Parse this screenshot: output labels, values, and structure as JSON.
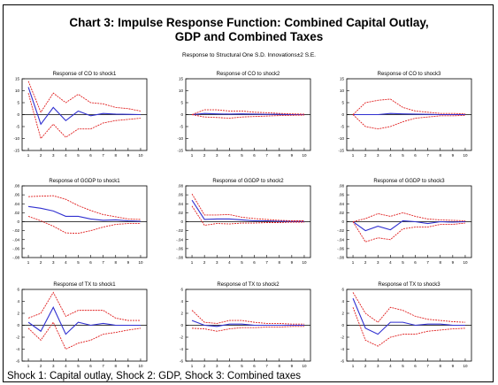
{
  "title_line1": "Chart 3: Impulse Response Function: Combined Capital Outlay,",
  "title_line2": "GDP and Combined Taxes",
  "subtitle": "Response to Structural One S.D. Innovations±2 S.E.",
  "footnote": "Shock 1: Capital outlay, Shock 2: GDP, Shock 3: Combined taxes",
  "colors": {
    "response": "#3030d0",
    "bands": "#e02020",
    "zero": "#000000",
    "frame": "#000000"
  },
  "chart_data": [
    {
      "type": "line",
      "title": "Response of CO to shock1",
      "x": [
        1,
        2,
        3,
        4,
        5,
        6,
        7,
        8,
        9,
        10
      ],
      "ylim": [
        -15,
        15
      ],
      "yticks": [
        "15",
        "10",
        "5",
        "0",
        "-5",
        "-10",
        "-15"
      ],
      "series": [
        {
          "values": [
            11.5,
            -4,
            3,
            -2.5,
            1.5,
            -0.5,
            0.5,
            0.2,
            0.1,
            0
          ]
        },
        {
          "values": [
            14,
            1,
            9,
            5,
            8.5,
            5,
            4.5,
            3,
            2.5,
            1.5
          ]
        },
        {
          "values": [
            9,
            -10,
            -4,
            -9.5,
            -6,
            -6,
            -3.5,
            -2.5,
            -2,
            -1.5
          ]
        }
      ]
    },
    {
      "type": "line",
      "title": "Response of CO to shock2",
      "x": [
        1,
        2,
        3,
        4,
        5,
        6,
        7,
        8,
        9,
        10
      ],
      "ylim": [
        -15,
        15
      ],
      "yticks": [
        "15",
        "10",
        "5",
        "0",
        "-5",
        "-10",
        "-15"
      ],
      "series": [
        {
          "values": [
            0,
            0.5,
            0.3,
            0.2,
            0.3,
            0.2,
            0.1,
            0.1,
            0,
            0
          ]
        },
        {
          "values": [
            0,
            2,
            2,
            1.5,
            1.5,
            1,
            0.8,
            0.5,
            0.3,
            0.2
          ]
        },
        {
          "values": [
            0,
            -1,
            -1.2,
            -1.5,
            -1,
            -0.8,
            -0.6,
            -0.4,
            -0.3,
            -0.2
          ]
        }
      ]
    },
    {
      "type": "line",
      "title": "Response of CO to shock3",
      "x": [
        1,
        2,
        3,
        4,
        5,
        6,
        7,
        8,
        9,
        10
      ],
      "ylim": [
        -15,
        15
      ],
      "yticks": [
        "15",
        "10",
        "5",
        "0",
        "-5",
        "-10",
        "-15"
      ],
      "series": [
        {
          "values": [
            0,
            0,
            0,
            0.5,
            0.3,
            0.2,
            0.1,
            0,
            0,
            0
          ]
        },
        {
          "values": [
            0,
            5,
            6,
            6.5,
            3,
            1.5,
            1,
            0.5,
            0.5,
            0.3
          ]
        },
        {
          "values": [
            0,
            -5,
            -6,
            -5,
            -3,
            -1.5,
            -1,
            -0.5,
            -0.5,
            -0.3
          ]
        }
      ]
    },
    {
      "type": "line",
      "title": "Response of GGDP to shock1",
      "x": [
        1,
        2,
        3,
        4,
        5,
        6,
        7,
        8,
        9,
        10
      ],
      "ylim": [
        -0.08,
        0.08
      ],
      "yticks": [
        ".08",
        ".06",
        ".04",
        ".02",
        "0",
        "-.02",
        "-.04",
        "-.06",
        "-.08"
      ],
      "series": [
        {
          "values": [
            0.034,
            0.03,
            0.024,
            0.012,
            0.012,
            0.006,
            0.003,
            0.004,
            0.002,
            0.001
          ]
        },
        {
          "values": [
            0.056,
            0.057,
            0.058,
            0.05,
            0.036,
            0.025,
            0.016,
            0.011,
            0.006,
            0.005
          ]
        },
        {
          "values": [
            0.012,
            0.002,
            -0.01,
            -0.025,
            -0.026,
            -0.02,
            -0.012,
            -0.006,
            -0.004,
            -0.004
          ]
        }
      ]
    },
    {
      "type": "line",
      "title": "Response of GGDP to shock2",
      "x": [
        1,
        2,
        3,
        4,
        5,
        6,
        7,
        8,
        9,
        10
      ],
      "ylim": [
        -0.08,
        0.08
      ],
      "yticks": [
        ".08",
        ".06",
        ".04",
        ".02",
        "0",
        "-.02",
        "-.04",
        "-.06",
        "-.08"
      ],
      "series": [
        {
          "values": [
            0.048,
            0.005,
            0.006,
            0.006,
            0.004,
            0.002,
            0.002,
            0.001,
            0.001,
            0.001
          ]
        },
        {
          "values": [
            0.062,
            0.015,
            0.015,
            0.016,
            0.01,
            0.007,
            0.005,
            0.003,
            0.002,
            0.002
          ]
        },
        {
          "values": [
            0.035,
            -0.008,
            -0.004,
            -0.005,
            -0.003,
            -0.003,
            -0.002,
            -0.002,
            -0.001,
            -0.001
          ]
        }
      ]
    },
    {
      "type": "line",
      "title": "Response of GGDP to shock3",
      "x": [
        1,
        2,
        3,
        4,
        5,
        6,
        7,
        8,
        9,
        10
      ],
      "ylim": [
        -0.08,
        0.08
      ],
      "yticks": [
        ".08",
        ".06",
        ".04",
        ".02",
        "0",
        "-.02",
        "-.04",
        "-.06",
        "-.08"
      ],
      "series": [
        {
          "values": [
            0,
            -0.02,
            -0.01,
            -0.018,
            0.002,
            0.0,
            -0.004,
            0.0,
            -0.001,
            0
          ]
        },
        {
          "values": [
            0,
            0.007,
            0.018,
            0.012,
            0.02,
            0.012,
            0.006,
            0.004,
            0.003,
            0.002
          ]
        },
        {
          "values": [
            0,
            -0.045,
            -0.036,
            -0.04,
            -0.016,
            -0.012,
            -0.012,
            -0.006,
            -0.006,
            -0.003
          ]
        }
      ]
    },
    {
      "type": "line",
      "title": "Response of TX to shock1",
      "x": [
        1,
        2,
        3,
        4,
        5,
        6,
        7,
        8,
        9,
        10
      ],
      "ylim": [
        -6,
        6
      ],
      "yticks": [
        "6",
        "4",
        "2",
        "0",
        "-2",
        "-4",
        "-6"
      ],
      "series": [
        {
          "values": [
            0.5,
            -1,
            3,
            -1.5,
            0.5,
            0,
            0.3,
            0,
            0,
            0
          ]
        },
        {
          "values": [
            1.2,
            2,
            5.5,
            1.5,
            2.5,
            2.5,
            2.5,
            1.2,
            0.8,
            0.8
          ]
        },
        {
          "values": [
            -0.5,
            -2.5,
            0.5,
            -4,
            -3,
            -2.5,
            -1.5,
            -1.2,
            -0.8,
            -0.5
          ]
        }
      ]
    },
    {
      "type": "line",
      "title": "Response of TX to shock2",
      "x": [
        1,
        2,
        3,
        4,
        5,
        6,
        7,
        8,
        9,
        10
      ],
      "ylim": [
        -6,
        6
      ],
      "yticks": [
        "6",
        "4",
        "2",
        "0",
        "-2",
        "-4",
        "-6"
      ],
      "series": [
        {
          "values": [
            0.8,
            0,
            -0.2,
            0.2,
            0.2,
            0,
            0,
            0,
            0,
            0
          ]
        },
        {
          "values": [
            2.5,
            0.5,
            0.3,
            0.8,
            0.8,
            0.5,
            0.3,
            0.3,
            0.2,
            0.2
          ]
        },
        {
          "values": [
            -0.5,
            -0.6,
            -1,
            -0.6,
            -0.4,
            -0.4,
            -0.3,
            -0.3,
            -0.2,
            -0.2
          ]
        }
      ]
    },
    {
      "type": "line",
      "title": "Response of TX to shock3",
      "x": [
        1,
        2,
        3,
        4,
        5,
        6,
        7,
        8,
        9,
        10
      ],
      "ylim": [
        -6,
        6
      ],
      "yticks": [
        "6",
        "4",
        "2",
        "0",
        "-2",
        "-4",
        "-6"
      ],
      "series": [
        {
          "values": [
            4.5,
            -0.5,
            -1.5,
            0.5,
            0.5,
            0,
            0.2,
            0.2,
            0,
            0
          ]
        },
        {
          "values": [
            5.5,
            2,
            0.5,
            3,
            2.5,
            1.5,
            1,
            0.8,
            0.6,
            0.5
          ]
        },
        {
          "values": [
            3,
            -2.5,
            -3.5,
            -2,
            -1.5,
            -1.5,
            -1,
            -0.8,
            -0.6,
            -0.5
          ]
        }
      ]
    }
  ]
}
